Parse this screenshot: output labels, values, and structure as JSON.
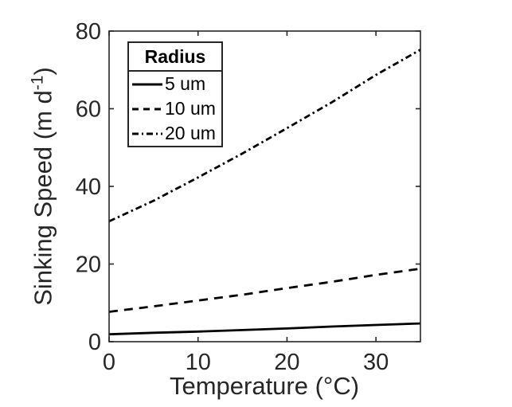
{
  "chart_data": {
    "type": "line",
    "title": "",
    "xlabel": "Temperature (°C)",
    "ylabel": "Sinking Speed (m d⁻¹)",
    "ylabel_parts": {
      "pre": "Sinking Speed (m d",
      "sup": "-1",
      "post": ")"
    },
    "xlim": [
      0,
      35
    ],
    "ylim": [
      0,
      80
    ],
    "x_ticks": [
      0,
      10,
      20,
      30
    ],
    "y_ticks": [
      0,
      20,
      40,
      60,
      80
    ],
    "grid": false,
    "legend_position": "inside-top-left",
    "x": [
      0,
      5,
      10,
      15,
      20,
      25,
      30,
      35
    ],
    "series": [
      {
        "name": "5 um",
        "style": "solid",
        "values": [
          1.9,
          2.3,
          2.6,
          3.0,
          3.4,
          3.9,
          4.3,
          4.7
        ]
      },
      {
        "name": "10 um",
        "style": "dashed",
        "values": [
          7.7,
          9.1,
          10.6,
          12.1,
          13.8,
          15.4,
          17.2,
          18.8
        ]
      },
      {
        "name": "20 um",
        "style": "dashdot",
        "values": [
          31.0,
          36.3,
          42.3,
          48.5,
          55.0,
          61.6,
          68.7,
          75.2
        ]
      }
    ],
    "line_color": "#000000",
    "axis_color": "#262626",
    "background_color": "#ffffff"
  },
  "legend": {
    "title": "Radius",
    "entries": [
      {
        "label": "5 um",
        "style": "solid"
      },
      {
        "label": "10 um",
        "style": "dashed"
      },
      {
        "label": "20 um",
        "style": "dashdot"
      }
    ]
  }
}
